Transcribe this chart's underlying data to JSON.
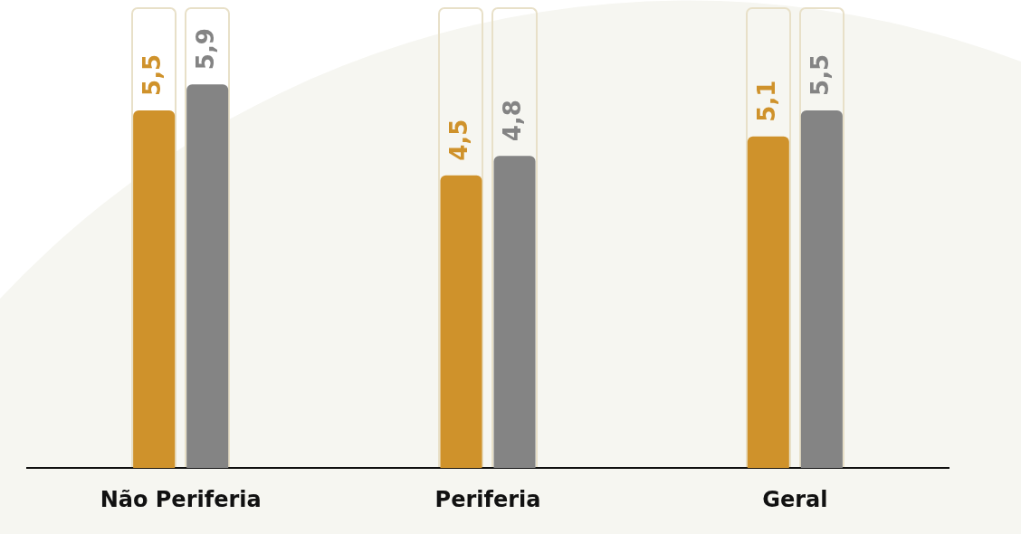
{
  "chart_data": {
    "type": "bar",
    "categories": [
      "Não Periferia",
      "Periferia",
      "Geral"
    ],
    "series": [
      {
        "color": "#cf922b",
        "values": [
          5.5,
          4.5,
          5.1
        ],
        "value_labels": [
          "5,5",
          "4,5",
          "5,1"
        ]
      },
      {
        "color": "#848484",
        "values": [
          5.9,
          4.8,
          5.5
        ],
        "value_labels": [
          "5,9",
          "4,8",
          "5,5"
        ]
      }
    ],
    "tick_labels": "x",
    "grid": false,
    "legend": false
  }
}
